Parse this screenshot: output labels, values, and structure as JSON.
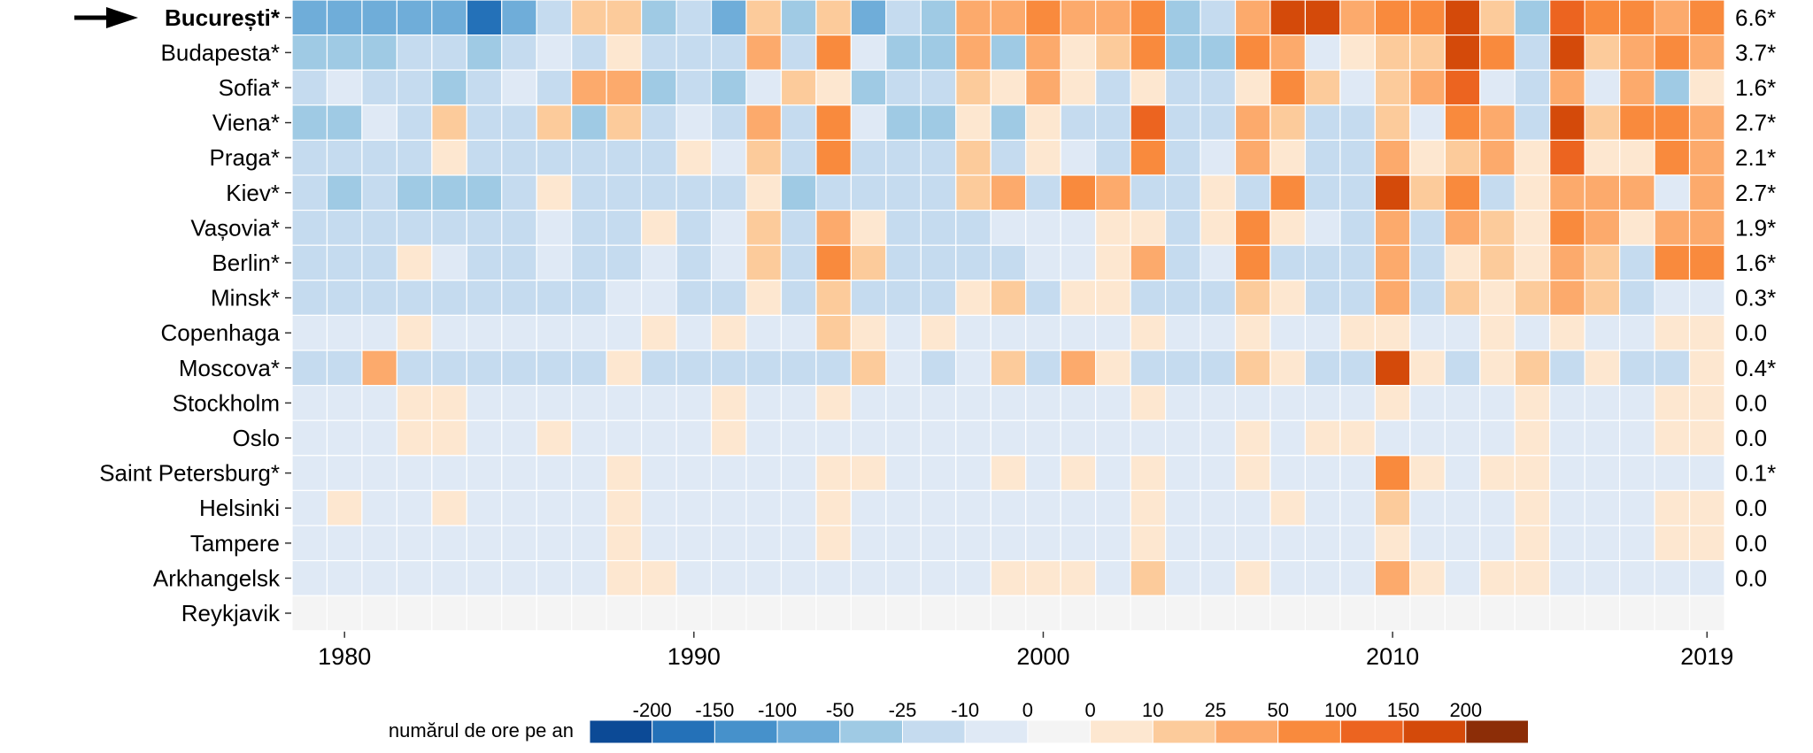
{
  "chart_data": {
    "type": "heatmap",
    "title": "",
    "xlabel": "",
    "ylabel": "",
    "x_start": 1979,
    "x_end": 2019,
    "x_ticks": [
      "1980",
      "1990",
      "2000",
      "2010",
      "2019"
    ],
    "highlighted_row": "București*",
    "grid": true,
    "legend_position": "bottom",
    "legend": {
      "title": "numărul de ore pe an",
      "labels": [
        "-200",
        "-150",
        "-100",
        "-50",
        "-25",
        "-10",
        "0",
        "0",
        "10",
        "25",
        "50",
        "100",
        "150",
        "200"
      ],
      "colors": [
        "#0c4a96",
        "#2471b8",
        "#4691cb",
        "#6fadd9",
        "#9fcae4",
        "#c5dbef",
        "#dfe9f5",
        "#f4f4f4",
        "#fde7d0",
        "#fccb9b",
        "#fcaa6c",
        "#f98a3d",
        "#ec6420",
        "#d44a0a",
        "#8c2d07"
      ]
    },
    "rows": [
      {
        "city": "București*",
        "trend": "6.6*",
        "values": [
          -3,
          -3,
          -3,
          -3,
          -3,
          -5,
          -3,
          -1,
          2,
          2,
          -2,
          -1,
          -3,
          2,
          -2,
          2,
          -3,
          -1,
          -2,
          3,
          3,
          4,
          3,
          3,
          4,
          -2,
          -1,
          3,
          6,
          6,
          3,
          4,
          4,
          6,
          2,
          -2,
          5,
          4,
          4,
          3,
          4
        ]
      },
      {
        "city": "Budapesta*",
        "trend": "3.7*",
        "values": [
          -2,
          -2,
          -2,
          -1,
          -1,
          -2,
          -1,
          0,
          -1,
          1,
          -1,
          -1,
          -1,
          3,
          -1,
          4,
          0,
          -2,
          -2,
          3,
          -2,
          3,
          1,
          2,
          4,
          -2,
          -2,
          4,
          3,
          0,
          1,
          2,
          2,
          6,
          4,
          -1,
          6,
          2,
          3,
          4,
          3
        ]
      },
      {
        "city": "Sofia*",
        "trend": "1.6*",
        "values": [
          -1,
          0,
          -1,
          -1,
          -2,
          -1,
          0,
          -1,
          3,
          3,
          -2,
          -1,
          -2,
          0,
          2,
          1,
          -2,
          -1,
          -1,
          2,
          1,
          3,
          1,
          -1,
          1,
          -1,
          -1,
          1,
          4,
          2,
          0,
          2,
          3,
          5,
          0,
          -1,
          3,
          0,
          3,
          -2,
          1
        ]
      },
      {
        "city": "Viena*",
        "trend": "2.7*",
        "values": [
          -2,
          -2,
          0,
          -1,
          2,
          -1,
          -1,
          2,
          -2,
          2,
          -1,
          0,
          -1,
          3,
          -1,
          4,
          0,
          -2,
          -2,
          1,
          -2,
          1,
          -1,
          -1,
          5,
          -1,
          -1,
          3,
          2,
          -1,
          -1,
          2,
          0,
          4,
          3,
          -1,
          6,
          2,
          4,
          4,
          3
        ]
      },
      {
        "city": "Praga*",
        "trend": "2.1*",
        "values": [
          -1,
          -1,
          -1,
          -1,
          1,
          -1,
          -1,
          -1,
          -1,
          -1,
          -1,
          1,
          0,
          2,
          -1,
          4,
          -1,
          -1,
          -1,
          2,
          -1,
          1,
          0,
          -1,
          4,
          -1,
          0,
          3,
          1,
          -1,
          -1,
          3,
          1,
          2,
          3,
          1,
          5,
          1,
          1,
          4,
          3
        ]
      },
      {
        "city": "Kiev*",
        "trend": "2.7*",
        "values": [
          -1,
          -2,
          -1,
          -2,
          -2,
          -2,
          -1,
          1,
          -1,
          -1,
          -1,
          -1,
          -1,
          1,
          -2,
          -1,
          -1,
          -1,
          -1,
          2,
          3,
          -1,
          4,
          3,
          -1,
          -1,
          1,
          -1,
          4,
          -1,
          -1,
          6,
          2,
          4,
          -1,
          1,
          3,
          3,
          3,
          0,
          3
        ]
      },
      {
        "city": "Vașovia*",
        "trend": "1.9*",
        "values": [
          -1,
          -1,
          -1,
          -1,
          -1,
          -1,
          -1,
          0,
          -1,
          -1,
          1,
          -1,
          0,
          2,
          -1,
          3,
          1,
          -1,
          -1,
          -1,
          0,
          0,
          0,
          1,
          1,
          -1,
          1,
          4,
          1,
          0,
          -1,
          3,
          -1,
          3,
          2,
          1,
          4,
          3,
          1,
          3,
          3
        ]
      },
      {
        "city": "Berlin*",
        "trend": "1.6*",
        "values": [
          -1,
          -1,
          -1,
          1,
          0,
          -1,
          -1,
          0,
          -1,
          -1,
          0,
          -1,
          0,
          2,
          -1,
          4,
          2,
          -1,
          -1,
          -1,
          -1,
          0,
          0,
          1,
          3,
          -1,
          0,
          4,
          -1,
          -1,
          -1,
          3,
          -1,
          1,
          2,
          1,
          3,
          2,
          -1,
          4,
          4
        ]
      },
      {
        "city": "Minsk*",
        "trend": "0.3*",
        "values": [
          -1,
          -1,
          -1,
          -1,
          -1,
          -1,
          -1,
          -1,
          -1,
          0,
          0,
          -1,
          -1,
          1,
          -1,
          2,
          -1,
          -1,
          -1,
          1,
          2,
          -1,
          1,
          1,
          -1,
          -1,
          -1,
          2,
          1,
          -1,
          -1,
          3,
          -1,
          2,
          1,
          2,
          3,
          2,
          -1,
          0,
          0
        ]
      },
      {
        "city": "Copenhaga",
        "trend": "0.0",
        "values": [
          0,
          0,
          0,
          1,
          0,
          0,
          0,
          0,
          0,
          0,
          1,
          0,
          1,
          0,
          0,
          2,
          1,
          0,
          1,
          0,
          0,
          0,
          0,
          0,
          1,
          0,
          0,
          1,
          0,
          0,
          1,
          1,
          0,
          0,
          1,
          0,
          1,
          0,
          0,
          1,
          1
        ]
      },
      {
        "city": "Moscova*",
        "trend": "0.4*",
        "values": [
          -1,
          -1,
          3,
          -1,
          -1,
          -1,
          -1,
          -1,
          -1,
          1,
          -1,
          -1,
          -1,
          -1,
          -1,
          -1,
          2,
          0,
          -1,
          0,
          2,
          -1,
          3,
          1,
          -1,
          -1,
          -1,
          2,
          1,
          -1,
          -1,
          6,
          1,
          -1,
          1,
          2,
          -1,
          1,
          -1,
          -1,
          1
        ]
      },
      {
        "city": "Stockholm",
        "trend": "0.0",
        "values": [
          0,
          0,
          0,
          1,
          1,
          0,
          0,
          0,
          0,
          0,
          0,
          0,
          1,
          0,
          0,
          1,
          0,
          0,
          0,
          0,
          0,
          0,
          0,
          0,
          1,
          0,
          0,
          0,
          0,
          0,
          0,
          1,
          0,
          0,
          0,
          1,
          0,
          0,
          0,
          1,
          1
        ]
      },
      {
        "city": "Oslo",
        "trend": "0.0",
        "values": [
          0,
          0,
          0,
          1,
          1,
          0,
          0,
          1,
          0,
          0,
          0,
          0,
          1,
          0,
          0,
          0,
          0,
          0,
          0,
          0,
          0,
          0,
          0,
          0,
          0,
          0,
          0,
          1,
          0,
          1,
          1,
          0,
          0,
          0,
          0,
          1,
          0,
          0,
          0,
          1,
          1
        ]
      },
      {
        "city": "Saint Petersburg*",
        "trend": "0.1*",
        "values": [
          0,
          0,
          0,
          0,
          0,
          0,
          0,
          0,
          0,
          1,
          0,
          0,
          0,
          0,
          0,
          1,
          1,
          0,
          0,
          0,
          1,
          0,
          1,
          0,
          1,
          0,
          0,
          1,
          0,
          0,
          0,
          4,
          1,
          0,
          1,
          1,
          0,
          0,
          0,
          0,
          0
        ]
      },
      {
        "city": "Helsinki",
        "trend": "0.0",
        "values": [
          0,
          1,
          0,
          0,
          1,
          0,
          0,
          0,
          0,
          1,
          0,
          0,
          0,
          0,
          0,
          1,
          0,
          0,
          0,
          0,
          0,
          0,
          0,
          0,
          1,
          0,
          0,
          0,
          1,
          0,
          0,
          2,
          0,
          0,
          0,
          1,
          0,
          0,
          0,
          1,
          1
        ]
      },
      {
        "city": "Tampere",
        "trend": "0.0",
        "values": [
          0,
          0,
          0,
          0,
          0,
          0,
          0,
          0,
          0,
          1,
          0,
          0,
          0,
          0,
          0,
          1,
          0,
          0,
          0,
          0,
          0,
          0,
          0,
          0,
          1,
          0,
          0,
          0,
          0,
          0,
          0,
          1,
          0,
          0,
          0,
          1,
          0,
          0,
          0,
          1,
          1
        ]
      },
      {
        "city": "Arkhangelsk",
        "trend": "0.0",
        "values": [
          0,
          0,
          0,
          0,
          0,
          0,
          0,
          0,
          0,
          1,
          1,
          0,
          0,
          0,
          0,
          0,
          0,
          0,
          0,
          0,
          1,
          1,
          1,
          0,
          2,
          0,
          0,
          1,
          0,
          0,
          0,
          3,
          1,
          0,
          1,
          1,
          0,
          0,
          0,
          0,
          0
        ]
      },
      {
        "city": "Reykjavik",
        "trend": "",
        "values": [
          null,
          null,
          null,
          null,
          null,
          null,
          null,
          null,
          null,
          null,
          null,
          null,
          null,
          null,
          null,
          null,
          null,
          null,
          null,
          null,
          null,
          null,
          null,
          null,
          null,
          null,
          null,
          null,
          null,
          null,
          null,
          null,
          null,
          null,
          null,
          null,
          null,
          null,
          null,
          null,
          null
        ]
      }
    ]
  }
}
